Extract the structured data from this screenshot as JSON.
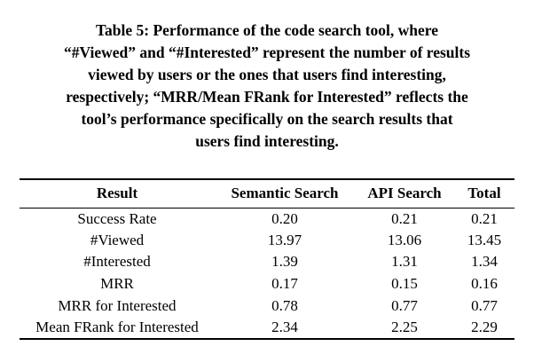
{
  "page": {
    "background": "#ffffff",
    "text_color": "#000000"
  },
  "caption": {
    "lines": [
      "Table 5: Performance of the code search tool, where",
      "“#Viewed” and “#Interested” represent the number of results",
      "viewed by users or the ones that users find interesting,",
      "respectively; “MRR/Mean FRank for Interested” reflects the",
      "tool’s performance specifically on the search results that",
      "users find interesting."
    ]
  },
  "table": {
    "columns": [
      "Result",
      "Semantic Search",
      "API Search",
      "Total"
    ],
    "rows": [
      {
        "label": "Success Rate",
        "values": [
          "0.20",
          "0.21",
          "0.21"
        ]
      },
      {
        "label": "#Viewed",
        "values": [
          "13.97",
          "13.06",
          "13.45"
        ]
      },
      {
        "label": "#Interested",
        "values": [
          "1.39",
          "1.31",
          "1.34"
        ]
      },
      {
        "label": "MRR",
        "values": [
          "0.17",
          "0.15",
          "0.16"
        ]
      },
      {
        "label": "MRR for Interested",
        "values": [
          "0.78",
          "0.77",
          "0.77"
        ]
      },
      {
        "label": "Mean FRank for Interested",
        "values": [
          "2.34",
          "2.25",
          "2.29"
        ]
      }
    ]
  }
}
